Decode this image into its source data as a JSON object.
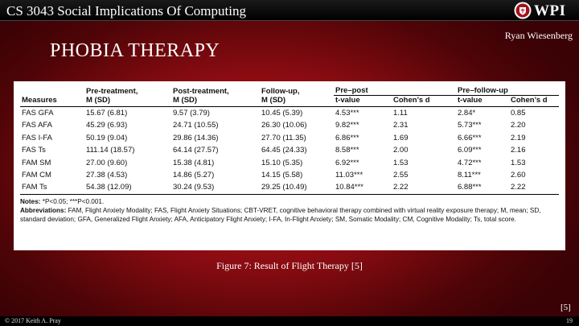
{
  "header": {
    "course_title": "CS 3043 Social Implications Of Computing",
    "logo_text": "WPI",
    "author": "Ryan Wiesenberg"
  },
  "slide": {
    "title": "PHOBIA THERAPY",
    "caption": "Figure 7: Result of Flight Therapy [5]",
    "reference": "[5]"
  },
  "table": {
    "headers": {
      "measures": "Measures",
      "pre_treatment": "Pre-treatment,",
      "post_treatment": "Post-treatment,",
      "follow_up": "Follow-up,",
      "msd": "M (SD)",
      "pre_post": "Pre–post",
      "pre_follow_up": "Pre–follow-up",
      "t_value": "t-value",
      "cohens_d": "Cohen’s d"
    },
    "rows": [
      [
        "FAS GFA",
        "15.67 (6.81)",
        "9.57 (3.79)",
        "10.45 (5.39)",
        "4.53***",
        "1.11",
        "2.84*",
        "0.85"
      ],
      [
        "FAS AFA",
        "45.29 (6.93)",
        "24.71 (10.55)",
        "26.30 (10.06)",
        "9.82***",
        "2.31",
        "5.73***",
        "2.20"
      ],
      [
        "FAS I-FA",
        "50.19 (9.04)",
        "29.86 (14.36)",
        "27.70 (11.35)",
        "6.86***",
        "1.69",
        "6.66***",
        "2.19"
      ],
      [
        "FAS Ts",
        "111.14 (18.57)",
        "64.14 (27.57)",
        "64.45 (24.33)",
        "8.58***",
        "2.00",
        "6.09***",
        "2.16"
      ],
      [
        "FAM SM",
        "27.00 (9.60)",
        "15.38 (4.81)",
        "15.10 (5.35)",
        "6.92***",
        "1.53",
        "4.72***",
        "1.53"
      ],
      [
        "FAM CM",
        "27.38 (4.53)",
        "14.86 (5.27)",
        "14.15 (5.58)",
        "11.03***",
        "2.55",
        "8.11***",
        "2.60"
      ],
      [
        "FAM Ts",
        "54.38 (12.09)",
        "30.24 (9.53)",
        "29.25 (10.49)",
        "10.84***",
        "2.22",
        "6.88***",
        "2.22"
      ]
    ],
    "notes_label": "Notes:",
    "notes_text": " *P<0.05; ***P<0.001.",
    "abbrev_label": "Abbreviations:",
    "abbrev_text": " FAM, Flight Anxiety Modality; FAS, Flight Anxiety Situations; CBT-VRET, cognitive behavioral therapy combined with virtual reality exposure therapy; M, mean; SD, standard deviation; GFA, Generalized Flight Anxiety; AFA, Anticipatory Flight Anxiety; I-FA, In-Flight Anxiety; SM, Somatic Modality; CM, Cognitive Modality; Ts, total score."
  },
  "footer": {
    "copyright": "© 2017 Keith A. Pray",
    "slide_number": "19"
  }
}
